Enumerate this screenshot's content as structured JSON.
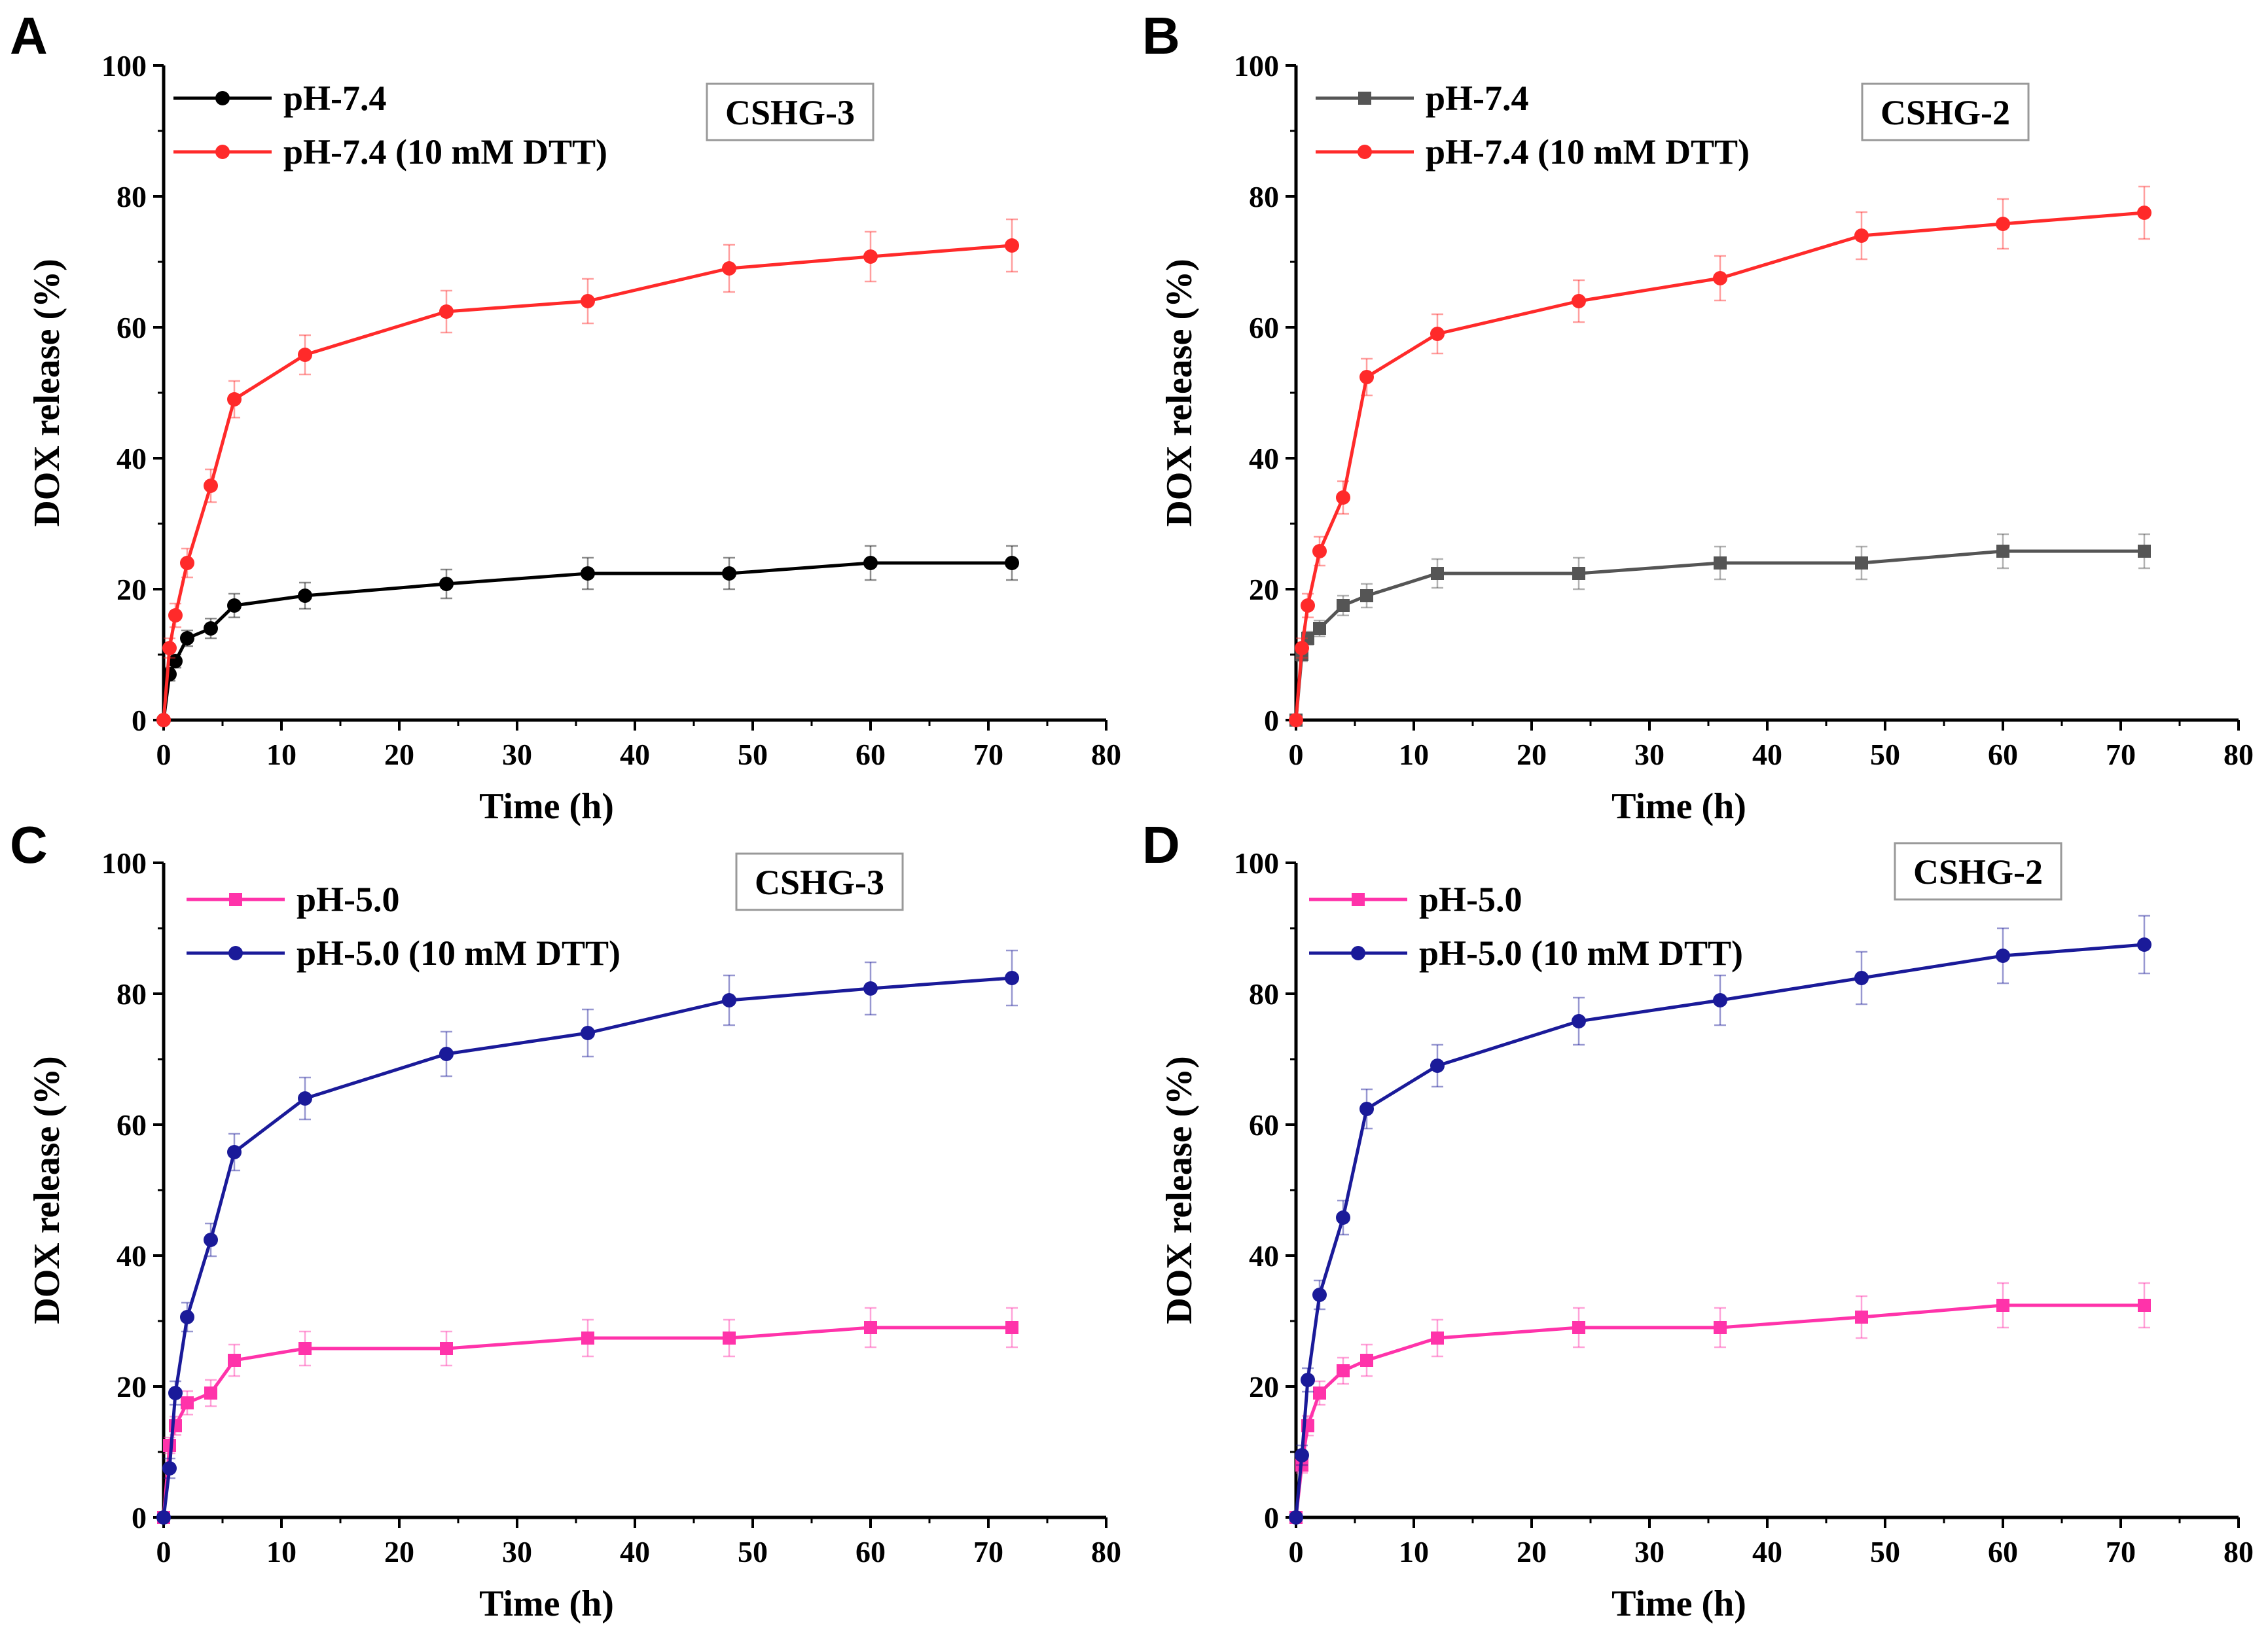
{
  "chart_data": [
    {
      "type": "line",
      "panel_label": "A",
      "annotation": "CSHG-3",
      "xlabel": "Time (h)",
      "ylabel": "DOX release (%)",
      "xlim": [
        0,
        80
      ],
      "ylim": [
        0,
        100
      ],
      "xticks": [
        0,
        10,
        20,
        30,
        40,
        50,
        60,
        70,
        80
      ],
      "yticks": [
        0,
        20,
        40,
        60,
        80,
        100
      ],
      "grid": false,
      "legend_position": "top-left",
      "series": [
        {
          "name": "pH-7.4",
          "color": "#000000",
          "marker": "circle",
          "x": [
            0,
            0.5,
            1,
            2,
            4,
            6,
            12,
            24,
            36,
            48,
            60,
            72
          ],
          "y": [
            0,
            7,
            9,
            12.5,
            14,
            17.5,
            19,
            20.8,
            22.4,
            22.4,
            24,
            24
          ],
          "err": [
            0,
            1,
            1,
            1.2,
            1.5,
            1.8,
            2,
            2.2,
            2.4,
            2.4,
            2.6,
            2.6
          ]
        },
        {
          "name": "pH-7.4 (10 mM DTT)",
          "color": "#ff2a2a",
          "marker": "circle",
          "x": [
            0,
            0.5,
            1,
            2,
            4,
            6,
            12,
            24,
            36,
            48,
            60,
            72
          ],
          "y": [
            0,
            11,
            16,
            24,
            35.8,
            49,
            55.8,
            62.4,
            64,
            69,
            70.8,
            72.5
          ],
          "err": [
            0,
            1.5,
            1.8,
            2.2,
            2.5,
            2.8,
            3,
            3.2,
            3.4,
            3.6,
            3.8,
            4
          ]
        }
      ]
    },
    {
      "type": "line",
      "panel_label": "B",
      "annotation": "CSHG-2",
      "xlabel": "Time (h)",
      "ylabel": "DOX release (%)",
      "xlim": [
        0,
        80
      ],
      "ylim": [
        0,
        100
      ],
      "xticks": [
        0,
        10,
        20,
        30,
        40,
        50,
        60,
        70,
        80
      ],
      "yticks": [
        0,
        20,
        40,
        60,
        80,
        100
      ],
      "grid": false,
      "legend_position": "top-left",
      "series": [
        {
          "name": "pH-7.4",
          "color": "#555555",
          "marker": "square",
          "x": [
            0,
            0.5,
            1,
            2,
            4,
            6,
            12,
            24,
            36,
            48,
            60,
            72
          ],
          "y": [
            0,
            10,
            12.5,
            14,
            17.5,
            19,
            22.4,
            22.4,
            24,
            24,
            25.8,
            25.8
          ],
          "err": [
            0,
            1,
            1,
            1.2,
            1.5,
            1.8,
            2.2,
            2.4,
            2.5,
            2.5,
            2.6,
            2.6
          ]
        },
        {
          "name": "pH-7.4 (10 mM DTT)",
          "color": "#ff2a2a",
          "marker": "circle",
          "x": [
            0,
            0.5,
            1,
            2,
            4,
            6,
            12,
            24,
            36,
            48,
            60,
            72
          ],
          "y": [
            0,
            11,
            17.5,
            25.8,
            34,
            52.4,
            59,
            64,
            67.5,
            74,
            75.8,
            77.5
          ],
          "err": [
            0,
            1.5,
            1.8,
            2.2,
            2.5,
            2.8,
            3,
            3.2,
            3.4,
            3.6,
            3.8,
            4
          ]
        }
      ]
    },
    {
      "type": "line",
      "panel_label": "C",
      "annotation": "CSHG-3",
      "xlabel": "Time (h)",
      "ylabel": "DOX release (%)",
      "xlim": [
        0,
        80
      ],
      "ylim": [
        0,
        100
      ],
      "xticks": [
        0,
        10,
        20,
        30,
        40,
        50,
        60,
        70,
        80
      ],
      "yticks": [
        0,
        20,
        40,
        60,
        80,
        100
      ],
      "grid": false,
      "legend_position": "top-left",
      "series": [
        {
          "name": "pH-5.0",
          "color": "#ff33aa",
          "marker": "square",
          "x": [
            0,
            0.5,
            1,
            2,
            4,
            6,
            12,
            24,
            36,
            48,
            60,
            72
          ],
          "y": [
            0,
            11,
            14,
            17.5,
            19,
            24,
            25.8,
            25.8,
            27.4,
            27.4,
            29,
            29
          ],
          "err": [
            0,
            1.2,
            1.4,
            1.8,
            2,
            2.4,
            2.6,
            2.6,
            2.8,
            2.8,
            3,
            3
          ]
        },
        {
          "name": "pH-5.0 (10 mM DTT)",
          "color": "#1a1a99",
          "marker": "circle",
          "x": [
            0,
            0.5,
            1,
            2,
            4,
            6,
            12,
            24,
            36,
            48,
            60,
            72
          ],
          "y": [
            0,
            7.5,
            19,
            30.6,
            42.4,
            55.8,
            64,
            70.8,
            74,
            79,
            80.8,
            82.4
          ],
          "err": [
            0,
            1.5,
            1.8,
            2.2,
            2.5,
            2.8,
            3.2,
            3.4,
            3.6,
            3.8,
            4,
            4.2
          ]
        }
      ]
    },
    {
      "type": "line",
      "panel_label": "D",
      "annotation": "CSHG-2",
      "xlabel": "Time (h)",
      "ylabel": "DOX release (%)",
      "xlim": [
        0,
        80
      ],
      "ylim": [
        0,
        100
      ],
      "xticks": [
        0,
        10,
        20,
        30,
        40,
        50,
        60,
        70,
        80
      ],
      "yticks": [
        0,
        20,
        40,
        60,
        80,
        100
      ],
      "grid": false,
      "legend_position": "top-left",
      "series": [
        {
          "name": "pH-5.0",
          "color": "#ff33aa",
          "marker": "square",
          "x": [
            0,
            0.5,
            1,
            2,
            4,
            6,
            12,
            24,
            36,
            48,
            60,
            72
          ],
          "y": [
            0,
            8,
            14,
            19,
            22.4,
            24,
            27.4,
            29,
            29,
            30.6,
            32.4,
            32.4
          ],
          "err": [
            0,
            1.2,
            1.5,
            1.8,
            2,
            2.4,
            2.8,
            3,
            3,
            3.2,
            3.4,
            3.4
          ]
        },
        {
          "name": "pH-5.0 (10 mM DTT)",
          "color": "#1a1a99",
          "marker": "circle",
          "x": [
            0,
            0.5,
            1,
            2,
            4,
            6,
            12,
            24,
            36,
            48,
            60,
            72
          ],
          "y": [
            0,
            9.5,
            21,
            34,
            45.8,
            62.4,
            69,
            75.8,
            79,
            82.4,
            85.8,
            87.5
          ],
          "err": [
            0,
            1.5,
            1.8,
            2.2,
            2.6,
            3,
            3.2,
            3.6,
            3.8,
            4,
            4.2,
            4.4
          ]
        }
      ]
    }
  ]
}
